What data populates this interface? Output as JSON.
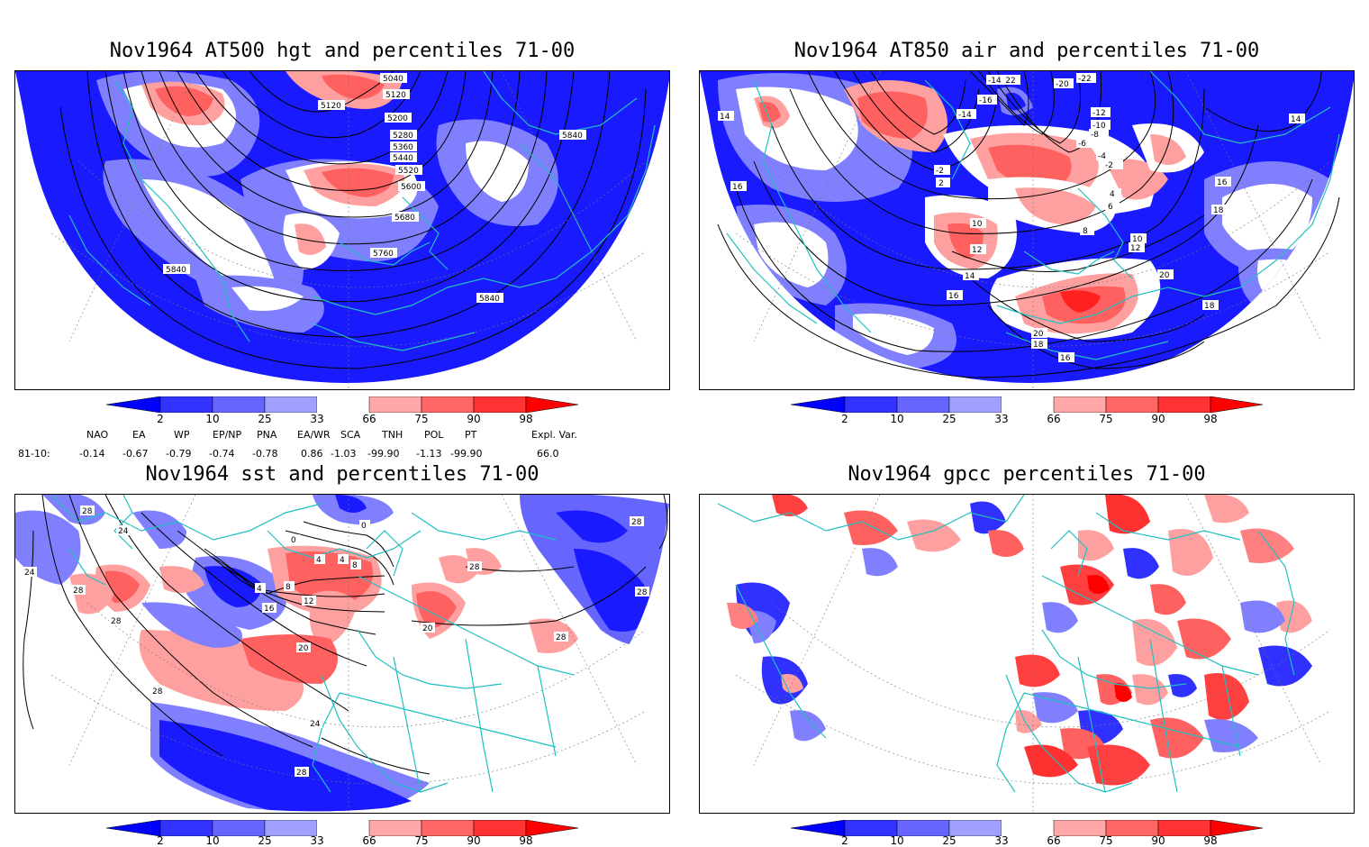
{
  "panels": {
    "top_left": {
      "title": "Nov1964 AT500 hgt and percentiles 71-00",
      "contour_labels": [
        "5040",
        "5120",
        "5120",
        "5200",
        "5280",
        "5360",
        "5440",
        "5520",
        "5600",
        "5680",
        "5760",
        "5840",
        "5840",
        "5840"
      ]
    },
    "top_right": {
      "title": "Nov1964 AT850 air and percentiles 71-00",
      "contour_labels": [
        "-22",
        "-22",
        "-20",
        "-16",
        "-14",
        "-14",
        "-12",
        "-10",
        "-8",
        "-6",
        "-4",
        "-2",
        "2",
        "4",
        "6",
        "8",
        "10",
        "10",
        "12",
        "12",
        "14",
        "14",
        "14",
        "16",
        "16",
        "16",
        "16",
        "18",
        "18",
        "18",
        "20",
        "20",
        "-2"
      ]
    },
    "bottom_left": {
      "title": "Nov1964 sst and percentiles 71-00",
      "contour_labels": [
        "28",
        "24",
        "28",
        "28",
        "24",
        "4",
        "8",
        "12",
        "16",
        "20",
        "24",
        "28",
        "0",
        "0",
        "4",
        "4",
        "8",
        "20",
        "28",
        "28",
        "28",
        "28",
        "28"
      ]
    },
    "bottom_right": {
      "title": "Nov1964 gpcc percentiles 71-00"
    }
  },
  "colorbar": {
    "labels": [
      "2",
      "10",
      "25",
      "33",
      "66",
      "75",
      "90",
      "98"
    ],
    "colors": [
      "#0000ff",
      "#3333ff",
      "#6666ff",
      "#a0a0ff",
      "#ffffff",
      "#ffa8a8",
      "#ff6666",
      "#ff3333",
      "#ff0000"
    ]
  },
  "teleconnections": {
    "headers": [
      "NAO",
      "EA",
      "WP",
      "EP/NP",
      "PNA",
      "EA/WR",
      "SCA",
      "TNH",
      "POL",
      "PT",
      "Expl. Var."
    ],
    "row_label": "81-10:",
    "values": [
      "-0.14",
      "-0.67",
      "-0.79",
      "-0.74",
      "-0.78",
      "0.86",
      "-1.03",
      "-99.90",
      "-1.13",
      "-99.90",
      "66.0"
    ]
  },
  "colors": {
    "land_outline": "#20c0c0",
    "contour": "#000000",
    "blue": "#1a1aff",
    "light_blue": "#8080ff",
    "red": "#ff4040",
    "light_red": "#ffa0a0"
  }
}
